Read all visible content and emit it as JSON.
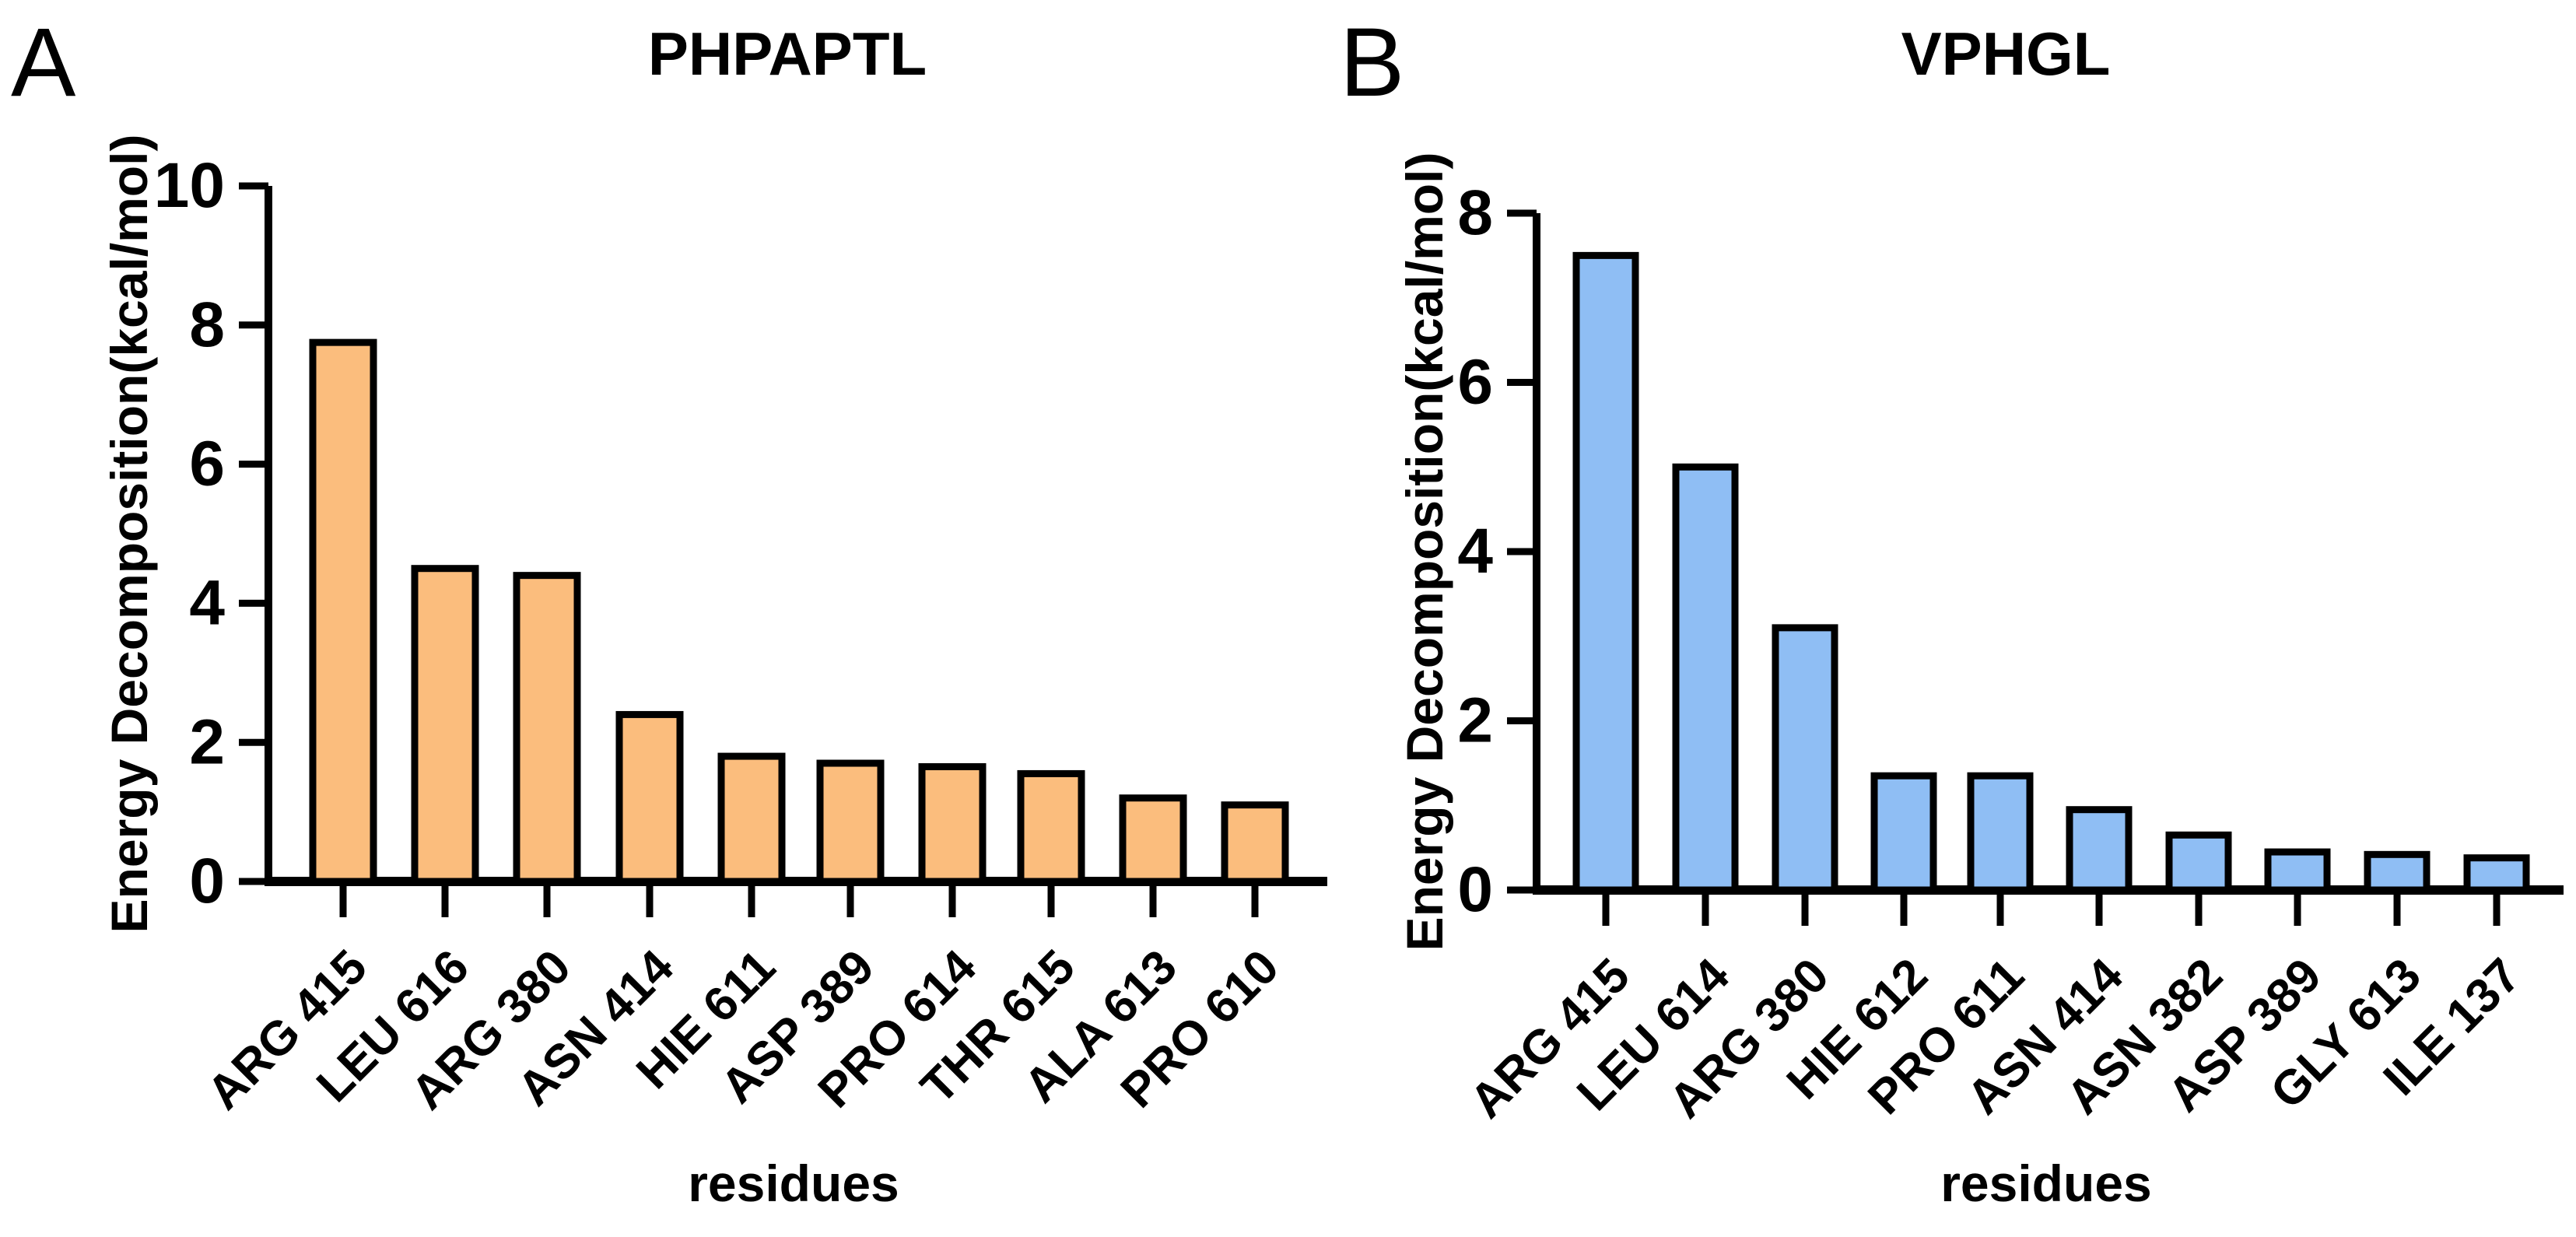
{
  "chart_data": [
    {
      "type": "bar",
      "panel_letter": "A",
      "title": "PHPAPTL",
      "xlabel": "residues",
      "ylabel": "Energy Decomposition(kcal/mol)",
      "ylim": [
        0,
        10
      ],
      "yticks": [
        0,
        2,
        4,
        6,
        8,
        10
      ],
      "grid": false,
      "legend": "none",
      "bar_color": "#FBBD7D",
      "bar_border_color": "#000000",
      "axis_color": "#000000",
      "categories": [
        "ARG 415",
        "LEU 616",
        "ARG 380",
        "ASN 414",
        "HIE 611",
        "ASP 389",
        "PRO 614",
        "THR 615",
        "ALA 613",
        "PRO 610"
      ],
      "values": [
        7.75,
        4.5,
        4.4,
        2.4,
        1.8,
        1.7,
        1.65,
        1.55,
        1.2,
        1.1
      ]
    },
    {
      "type": "bar",
      "panel_letter": "B",
      "title": "VPHGL",
      "xlabel": "residues",
      "ylabel": "Energy Decomposition(kcal/mol)",
      "ylim": [
        0,
        8
      ],
      "yticks": [
        0,
        2,
        4,
        6,
        8
      ],
      "grid": false,
      "legend": "none",
      "bar_color": "#8FBEF4",
      "bar_border_color": "#000000",
      "axis_color": "#000000",
      "categories": [
        "ARG 415",
        "LEU 614",
        "ARG 380",
        "HIE 612",
        "PRO 611",
        "ASN 414",
        "ASN 382",
        "ASP 389",
        "GLY 613",
        "ILE 137"
      ],
      "values": [
        7.5,
        5.0,
        3.1,
        1.35,
        1.35,
        0.95,
        0.65,
        0.45,
        0.42,
        0.38
      ]
    }
  ]
}
